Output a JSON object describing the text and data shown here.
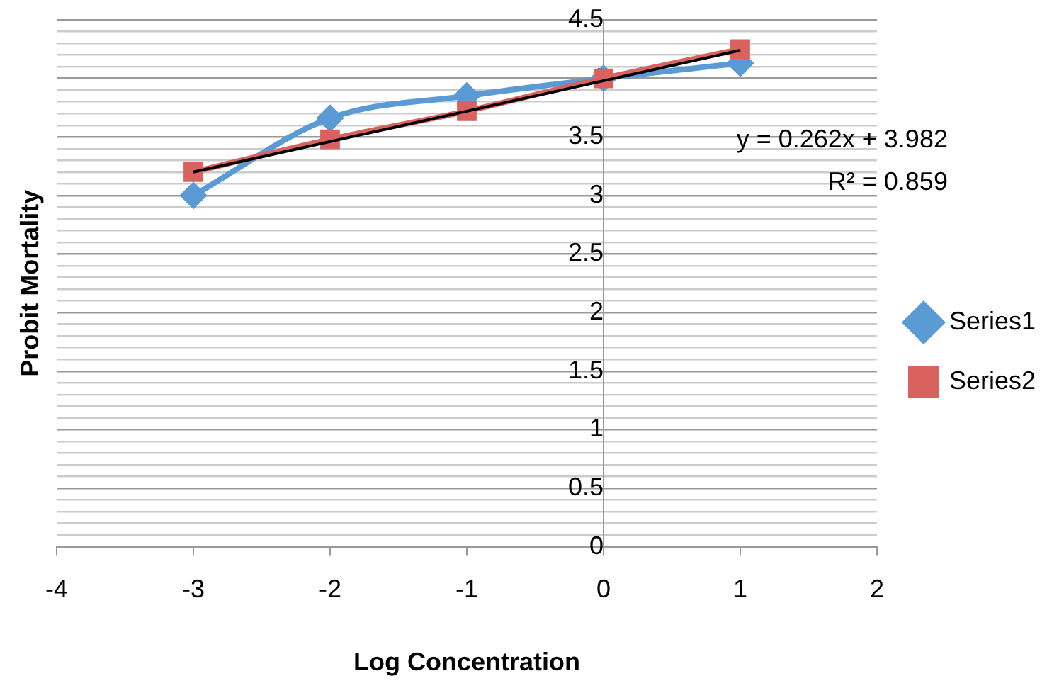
{
  "chart_data": {
    "type": "line",
    "xlabel": "Log Concentration",
    "ylabel": "Probit Mortality",
    "xlim": [
      -4,
      2
    ],
    "xticks": [
      -4,
      -3,
      -2,
      -1,
      0,
      1,
      2
    ],
    "ylim": [
      0,
      4.5
    ],
    "yticks": [
      0,
      {
        "value": 0.1,
        "label": null
      },
      {
        "value": 0.2,
        "label": null
      },
      {
        "value": 0.3,
        "label": null
      },
      {
        "value": 0.4,
        "label": null
      },
      0.5,
      {
        "value": 0.6,
        "label": null
      },
      {
        "value": 0.7,
        "label": null
      },
      {
        "value": 0.8,
        "label": null
      },
      {
        "value": 0.9,
        "label": null
      },
      1,
      {
        "value": 1.1,
        "label": null
      },
      {
        "value": 1.2,
        "label": null
      },
      {
        "value": 1.3,
        "label": null
      },
      {
        "value": 1.4,
        "label": null
      },
      1.5,
      {
        "value": 1.6,
        "label": null
      },
      {
        "value": 1.7,
        "label": null
      },
      {
        "value": 1.8,
        "label": null
      },
      {
        "value": 1.9,
        "label": null
      },
      2,
      {
        "value": 2.1,
        "label": null
      },
      {
        "value": 2.2,
        "label": null
      },
      {
        "value": 2.3,
        "label": null
      },
      {
        "value": 2.4,
        "label": null
      },
      2.5,
      {
        "value": 2.6,
        "label": null
      },
      {
        "value": 2.7,
        "label": null
      },
      {
        "value": 2.8,
        "label": null
      },
      {
        "value": 2.9,
        "label": null
      },
      3,
      {
        "value": 3.1,
        "label": null
      },
      {
        "value": 3.2,
        "label": null
      },
      {
        "value": 3.3,
        "label": null
      },
      {
        "value": 3.4,
        "label": null
      },
      3.5,
      {
        "value": 3.6,
        "label": null
      },
      {
        "value": 3.7,
        "label": null
      },
      {
        "value": 3.8,
        "label": null
      },
      {
        "value": 3.9,
        "label": null
      },
      4,
      {
        "value": 4.1,
        "label": null
      },
      {
        "value": 4.2,
        "label": null
      },
      {
        "value": 4.3,
        "label": null
      },
      {
        "value": 4.4,
        "label": null
      },
      4.5
    ],
    "x": [
      -3,
      -2,
      -1,
      0,
      1
    ],
    "series": [
      {
        "name": "Series1",
        "color": "#5b9bd5",
        "marker": "diamond",
        "values": [
          3.0,
          3.66,
          3.85,
          4.0,
          4.13
        ]
      },
      {
        "name": "Series2",
        "color": "#d9625e",
        "marker": "square",
        "values": [
          3.2,
          3.48,
          3.72,
          4.0,
          4.25
        ]
      },
      {
        "type": "line",
        "color": "#000000",
        "marker": "none",
        "x": [
          -3,
          1
        ],
        "values": [
          3.2,
          4.24
        ]
      }
    ],
    "annotations": [
      "y = 0.262x + 3.982",
      "R² = 0.859"
    ],
    "grid": "y",
    "legend": "right"
  }
}
